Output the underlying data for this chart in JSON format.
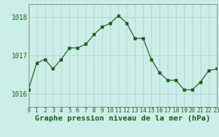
{
  "x": [
    0,
    1,
    2,
    3,
    4,
    5,
    6,
    7,
    8,
    9,
    10,
    11,
    12,
    13,
    14,
    15,
    16,
    17,
    18,
    19,
    20,
    21,
    22,
    23
  ],
  "y": [
    1016.1,
    1016.8,
    1016.9,
    1016.65,
    1016.9,
    1017.2,
    1017.2,
    1017.3,
    1017.55,
    1017.75,
    1017.85,
    1018.05,
    1017.85,
    1017.45,
    1017.45,
    1016.9,
    1016.55,
    1016.35,
    1016.35,
    1016.1,
    1016.1,
    1016.3,
    1016.6,
    1016.65
  ],
  "line_color": "#1a5e1a",
  "marker_color": "#1a5e1a",
  "bg_color": "#cceee8",
  "grid_color": "#b0c8c8",
  "xlabel": "Graphe pression niveau de la mer (hPa)",
  "ylabel_ticks": [
    1016,
    1017,
    1018
  ],
  "xlim": [
    0,
    23
  ],
  "ylim": [
    1015.65,
    1018.35
  ],
  "xtick_labels": [
    "0",
    "1",
    "2",
    "3",
    "4",
    "5",
    "6",
    "7",
    "8",
    "9",
    "10",
    "11",
    "12",
    "13",
    "14",
    "15",
    "16",
    "17",
    "18",
    "19",
    "20",
    "21",
    "22",
    "23"
  ],
  "xlabel_fontsize": 8,
  "ytick_fontsize": 7,
  "xtick_fontsize": 6
}
